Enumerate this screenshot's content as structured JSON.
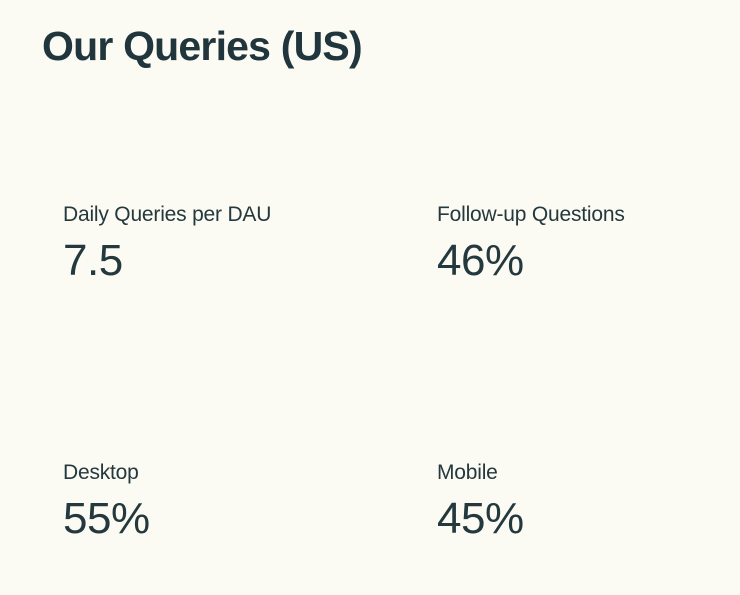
{
  "page": {
    "title": "Our Queries (US)"
  },
  "colors": {
    "background": "#fbfaf3",
    "text": "#24393e",
    "title_text": "#20363c"
  },
  "stats": [
    {
      "label": "Daily Queries per DAU",
      "value": "7.5"
    },
    {
      "label": "Follow-up Questions",
      "value": "46%"
    },
    {
      "label": "Desktop",
      "value": "55%"
    },
    {
      "label": "Mobile",
      "value": "45%"
    }
  ],
  "chart_data": {
    "type": "table",
    "title": "Our Queries (US)",
    "layout": "2x2 KPI stat grid, no axes, no gridlines, no legend",
    "metrics": [
      {
        "label": "Daily Queries per DAU",
        "value": 7.5,
        "unit": ""
      },
      {
        "label": "Follow-up Questions",
        "value": 46,
        "unit": "%"
      },
      {
        "label": "Desktop",
        "value": 55,
        "unit": "%"
      },
      {
        "label": "Mobile",
        "value": 45,
        "unit": "%"
      }
    ]
  }
}
